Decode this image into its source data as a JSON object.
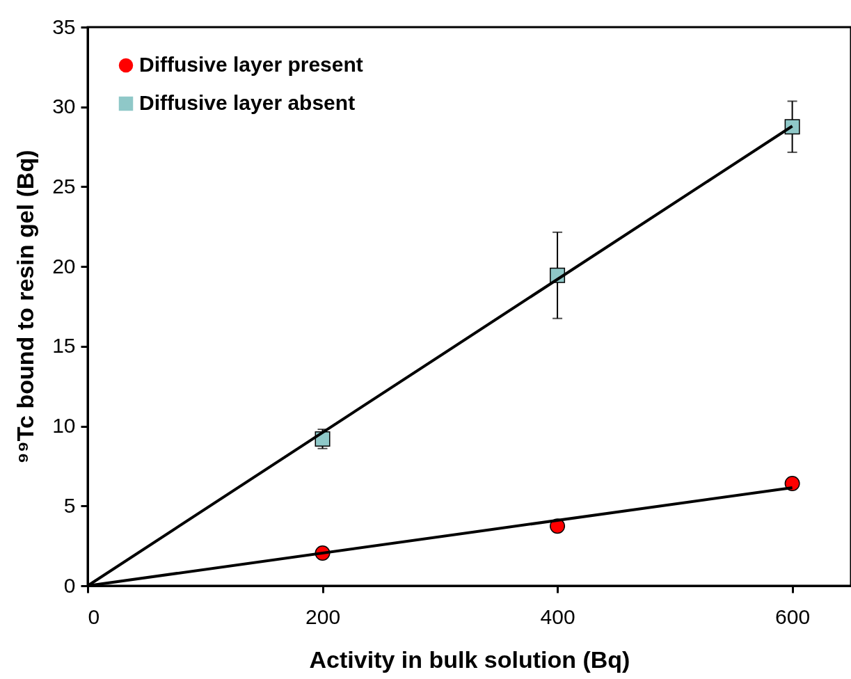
{
  "chart_data": {
    "type": "scatter",
    "xlabel": "Activity in bulk solution (Bq)",
    "ylabel": "⁹⁹Tc bound to resin gel (Bq)",
    "xlim": [
      0,
      650
    ],
    "ylim": [
      0,
      35
    ],
    "xticks": [
      0,
      200,
      400,
      600
    ],
    "yticks": [
      0,
      5,
      10,
      15,
      20,
      25,
      30,
      35
    ],
    "legend": "top left",
    "series": [
      {
        "name": "Diffusive layer present",
        "marker": "circle",
        "color": "#ff0000",
        "x": [
          200,
          400,
          600
        ],
        "values": [
          2.05,
          3.74,
          6.41
        ]
      },
      {
        "name": "Diffusive layer absent",
        "marker": "square",
        "color": "#8fc8c8",
        "x": [
          200,
          400,
          600
        ],
        "values": [
          9.2,
          19.45,
          28.76
        ],
        "errors": [
          0.6,
          2.7,
          1.6
        ]
      },
      {
        "type": "line",
        "color": "#000000",
        "x": [
          0,
          600
        ],
        "values": [
          0,
          6.15
        ]
      },
      {
        "type": "line",
        "color": "#000000",
        "x": [
          0,
          600
        ],
        "values": [
          0,
          28.8
        ]
      }
    ]
  }
}
